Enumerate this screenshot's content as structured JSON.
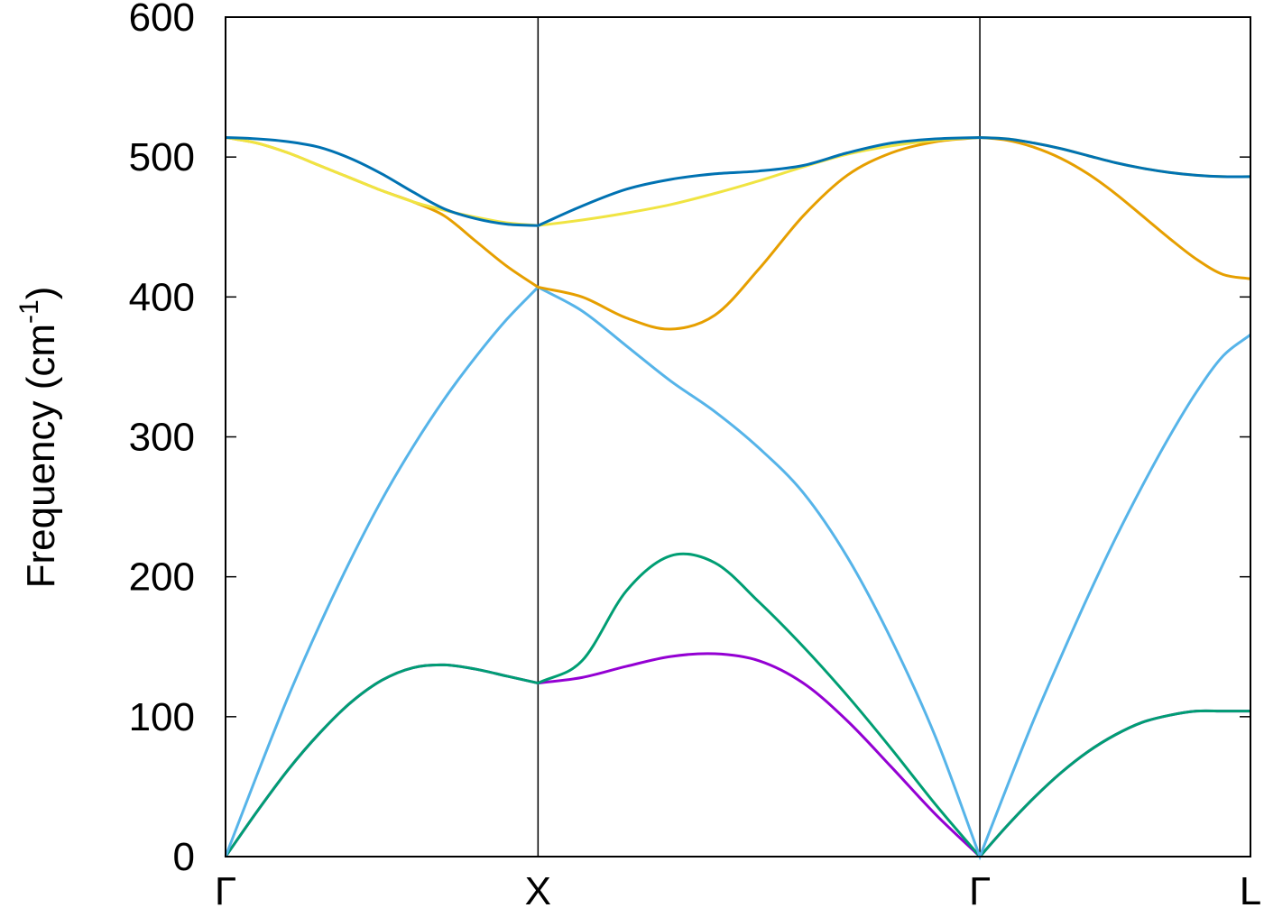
{
  "chart_data": {
    "type": "line",
    "ylabel_parts": [
      "Frequency (cm",
      "-1",
      ")"
    ],
    "x": [
      0,
      0.1,
      0.2,
      0.3,
      0.4,
      0.5,
      0.6,
      0.7,
      0.8,
      0.9,
      1.0,
      1.141,
      1.283,
      1.424,
      1.566,
      1.707,
      1.849,
      1.99,
      2.131,
      2.273,
      2.414,
      2.501,
      2.587,
      2.674,
      2.76,
      2.847,
      2.934,
      3.02,
      3.107,
      3.193,
      3.28
    ],
    "series": [
      {
        "color": "#9400d3",
        "values": [
          0,
          32,
          62,
          88,
          110,
          126,
          135,
          137,
          134,
          129,
          124,
          128,
          136,
          143,
          145,
          140,
          124,
          97,
          64,
          30,
          0,
          22,
          42,
          60,
          75,
          87,
          96,
          101,
          104,
          104,
          104
        ]
      },
      {
        "color": "#009e73",
        "values": [
          0,
          32,
          62,
          88,
          110,
          126,
          135,
          137,
          134,
          129,
          124,
          140,
          190,
          215,
          210,
          182,
          150,
          115,
          77,
          37,
          0,
          22,
          42,
          60,
          75,
          87,
          96,
          101,
          104,
          104,
          104
        ]
      },
      {
        "color": "#56b4e9",
        "values": [
          0,
          58,
          114,
          165,
          212,
          255,
          293,
          327,
          357,
          384,
          407,
          390,
          365,
          340,
          318,
          292,
          260,
          214,
          155,
          85,
          0,
          50,
          98,
          143,
          186,
          227,
          265,
          300,
          332,
          358,
          373
        ]
      },
      {
        "color": "#e69f00",
        "values": [
          514,
          510,
          503,
          494,
          485,
          476,
          468,
          458,
          440,
          422,
          407,
          400,
          385,
          377,
          387,
          420,
          458,
          487,
          503,
          511,
          514,
          512,
          507,
          499,
          488,
          474,
          458,
          442,
          427,
          416,
          413
        ]
      },
      {
        "color": "#f0e442",
        "values": [
          514,
          510,
          503,
          494,
          485,
          476,
          468,
          462,
          457,
          453,
          451,
          455,
          460,
          466,
          474,
          483,
          493,
          502,
          508,
          512,
          514,
          513,
          510,
          506,
          501,
          496,
          492,
          489,
          487,
          486,
          486
        ]
      },
      {
        "color": "#0072b2",
        "values": [
          514,
          513,
          511,
          507,
          499,
          488,
          475,
          463,
          456,
          452,
          451,
          465,
          477,
          484,
          488,
          490,
          494,
          503,
          510,
          513,
          514,
          513,
          510,
          506,
          501,
          496,
          492,
          489,
          487,
          486,
          486
        ]
      }
    ],
    "xlim": [
      0,
      3.28
    ],
    "xticks": [
      {
        "value": 0,
        "label": "Γ"
      },
      {
        "value": 1,
        "label": "X"
      },
      {
        "value": 2.414,
        "label": "Γ"
      },
      {
        "value": 3.28,
        "label": "L"
      }
    ],
    "ylim": [
      0,
      600
    ],
    "yticks": [
      0,
      100,
      200,
      300,
      400,
      500,
      600
    ],
    "xgrid": true
  }
}
